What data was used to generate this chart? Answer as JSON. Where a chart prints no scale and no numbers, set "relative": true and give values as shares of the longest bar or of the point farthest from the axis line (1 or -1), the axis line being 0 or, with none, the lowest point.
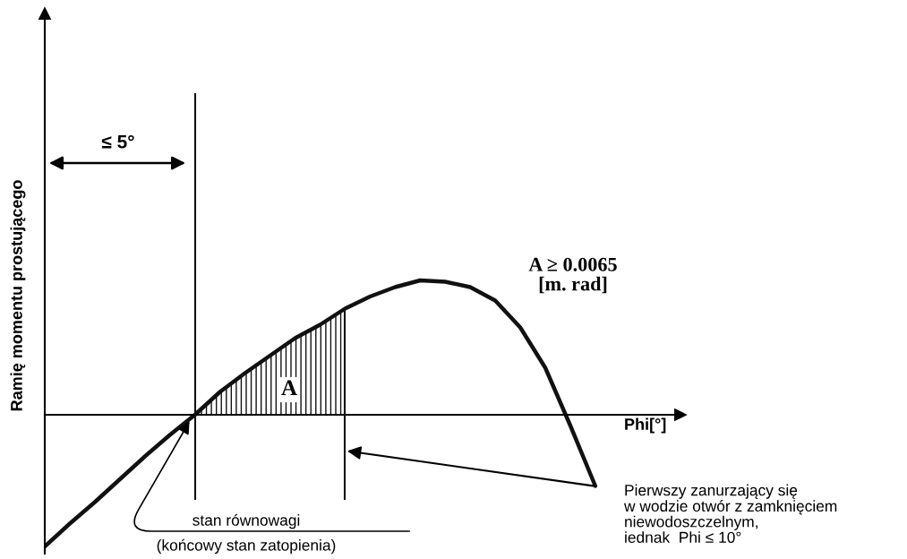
{
  "chart_data": {
    "type": "line",
    "relative": true,
    "marker": "none",
    "line_style": "solid",
    "xlabel": "Phi[°]",
    "ylabel": "Ramię momentu prostującego",
    "categories": [
      null,
      null,
      null,
      null,
      null,
      null,
      null,
      null,
      null,
      null,
      null,
      null,
      null,
      null,
      null,
      null,
      null,
      null,
      null,
      null,
      null,
      null,
      null
    ],
    "series": [
      {
        "color": "#111111",
        "values": [
          -0.98,
          -0.81,
          -0.65,
          -0.48,
          -0.31,
          -0.15,
          0.0,
          0.17,
          0.31,
          0.44,
          0.57,
          0.67,
          0.79,
          0.88,
          0.95,
          1.0,
          0.99,
          0.95,
          0.85,
          0.65,
          0.35,
          -0.08,
          -0.53
        ]
      },
      {
        "type": "area",
        "color": "#111111",
        "values": [
          null,
          null,
          null,
          null,
          null,
          null,
          0.0,
          0.17,
          0.31,
          0.44,
          0.57,
          0.67,
          0.79,
          null,
          null,
          null,
          null,
          null,
          null,
          null,
          null,
          null,
          null
        ]
      }
    ],
    "annotations": [
      "≤ 5°",
      "A",
      "A ≥ 0.0065\n[m. rad]",
      "stan równowagi\n(końcowy stan zatopienia)",
      "Pierwszy zanurzający się\nw wodzie otwór z zamknięciem\nniewodoszczelnym,\niednak  Phi ≤ 10°"
    ]
  }
}
